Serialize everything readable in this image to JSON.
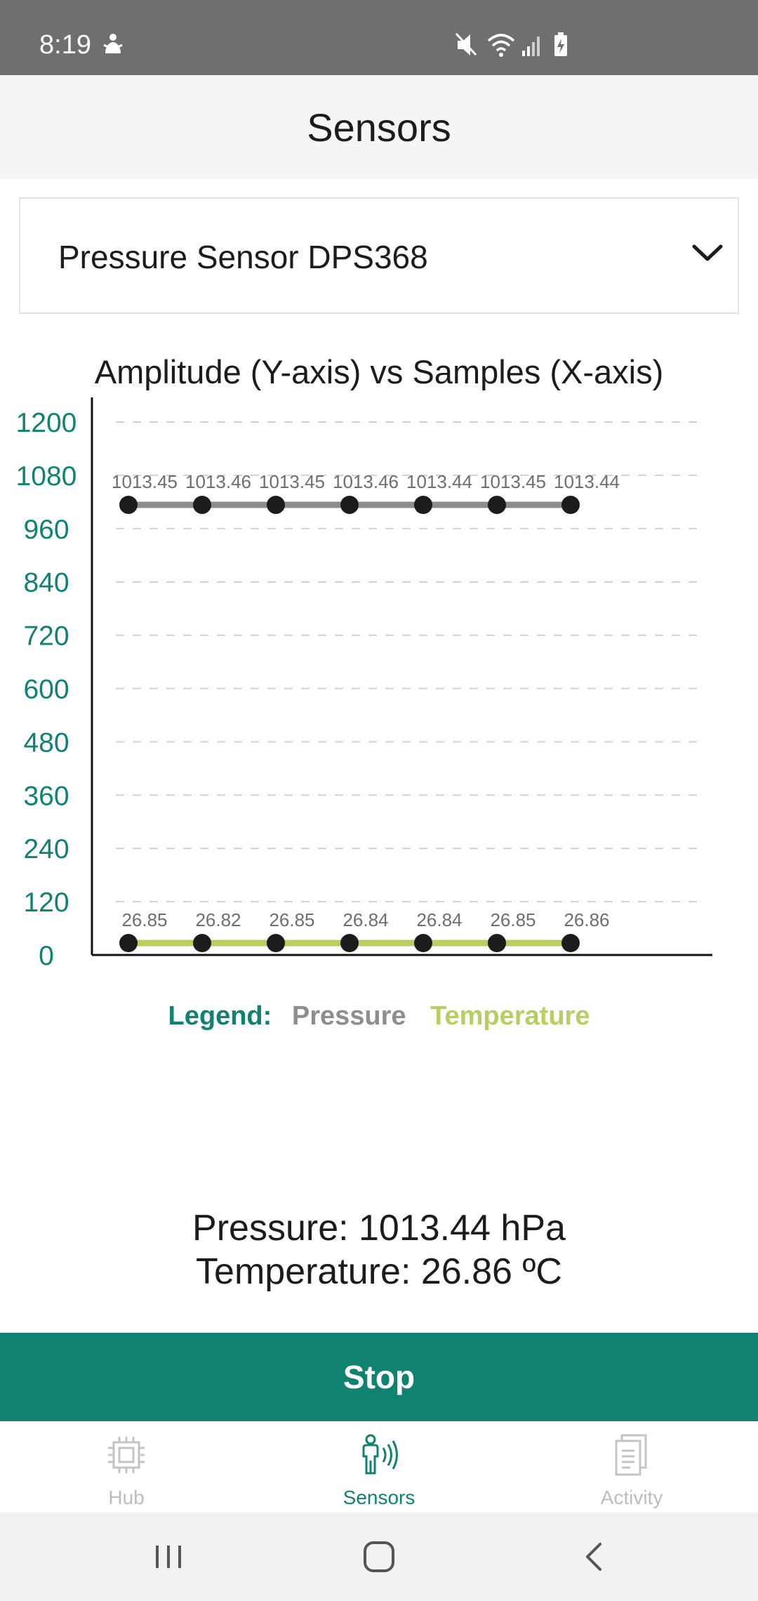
{
  "status_bar": {
    "time": "8:19",
    "left_icon": "accessibility-icon",
    "right_icons": [
      "mute-icon",
      "wifi-icon",
      "signal-icon",
      "battery-charging-icon"
    ]
  },
  "header": {
    "title": "Sensors"
  },
  "sensor_select": {
    "value": "Pressure Sensor DPS368",
    "icon": "chevron-down-icon"
  },
  "chart_data": {
    "type": "line",
    "title": "Amplitude (Y-axis) vs Samples (X-axis)",
    "x": [
      1,
      2,
      3,
      4,
      5,
      6,
      7
    ],
    "ylim": [
      0,
      1200
    ],
    "yticks": [
      0,
      120,
      240,
      360,
      480,
      600,
      720,
      840,
      960,
      1080,
      1200
    ],
    "grid": true,
    "series": [
      {
        "name": "Pressure",
        "color": "#8e8e8e",
        "values": [
          1013.45,
          1013.46,
          1013.45,
          1013.46,
          1013.44,
          1013.45,
          1013.44
        ],
        "labels": [
          "1013.45",
          "1013.46",
          "1013.45",
          "1013.46",
          "1013.44",
          "1013.45",
          "1013.44"
        ]
      },
      {
        "name": "Temperature",
        "color": "#b7cf5f",
        "values": [
          26.85,
          26.82,
          26.85,
          26.84,
          26.84,
          26.85,
          26.86
        ],
        "labels": [
          "26.85",
          "26.82",
          "26.85",
          "26.84",
          "26.84",
          "26.85",
          "26.86"
        ]
      }
    ]
  },
  "legend": {
    "label": "Legend:",
    "pressure": "Pressure",
    "temperature": "Temperature"
  },
  "readouts": {
    "pressure": "Pressure: 1013.44 hPa",
    "temperature": "Temperature: 26.86 ºC"
  },
  "stop_button": {
    "label": "Stop"
  },
  "bottom_nav": {
    "items": [
      {
        "label": "Hub",
        "icon": "chip-icon",
        "active": false
      },
      {
        "label": "Sensors",
        "icon": "person-sensor-icon",
        "active": true
      },
      {
        "label": "Activity",
        "icon": "document-icon",
        "active": false
      }
    ]
  },
  "system_nav": {
    "buttons": [
      "recents-icon",
      "home-icon",
      "back-icon"
    ]
  },
  "colors": {
    "accent": "#0f8272",
    "pressure": "#8e8e8e",
    "temperature": "#b7cf5f",
    "status_bar": "#6f6f6f"
  }
}
